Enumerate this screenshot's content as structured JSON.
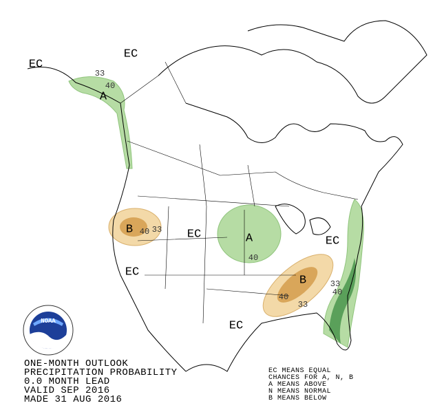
{
  "title_lines": [
    "ONE-MONTH OUTLOOK",
    "PRECIPITATION PROBABILITY",
    "0.0 MONTH LEAD",
    "VALID SEP 2016",
    "MADE 31 AUG 2016"
  ],
  "legend_lines": [
    "EC MEANS EQUAL",
    "CHANCES FOR A, N, B",
    "A MEANS ABOVE",
    "N MEANS NORMAL",
    "B MEANS BELOW"
  ],
  "logo": "NOAA",
  "map_labels": [
    "EC",
    "EC",
    "33",
    "40",
    "A",
    "B",
    "40",
    "33",
    "EC",
    "A",
    "40",
    "EC",
    "B",
    "33",
    "40",
    "40",
    "33",
    "EC",
    "EC"
  ]
}
